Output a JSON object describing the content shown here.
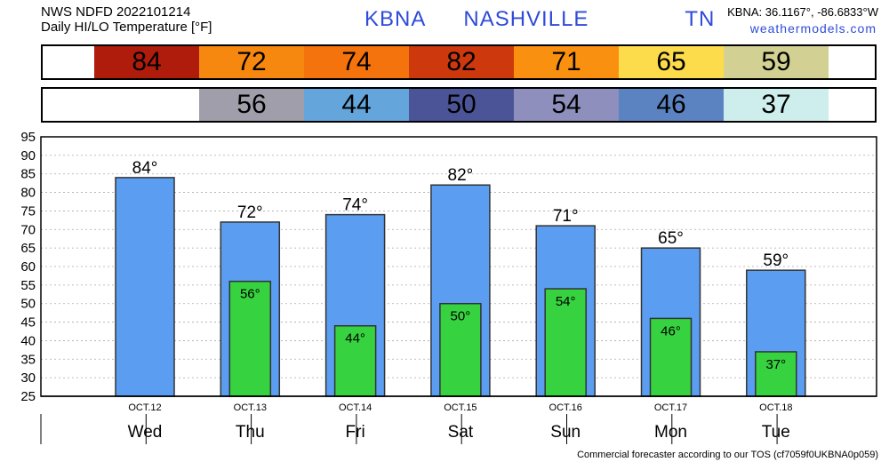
{
  "header": {
    "line1": "NWS NDFD 2022101214",
    "line2": "Daily HI/LO Temperature [°F]",
    "station": "KBNA  NASHVILLE     TN",
    "coords": "KBNA: 36.1167°, -86.6833°W",
    "site": "weathermodels.com"
  },
  "hi_strip": [
    {
      "value": "84",
      "color": "#b01c0c"
    },
    {
      "value": "72",
      "color": "#f7880f"
    },
    {
      "value": "74",
      "color": "#f4730d"
    },
    {
      "value": "82",
      "color": "#cd380d"
    },
    {
      "value": "71",
      "color": "#fa900f"
    },
    {
      "value": "65",
      "color": "#fddc4c"
    },
    {
      "value": "59",
      "color": "#d2d093"
    }
  ],
  "lo_strip": [
    {
      "value": "",
      "color": "#ffffff"
    },
    {
      "value": "56",
      "color": "#9f9eaa"
    },
    {
      "value": "44",
      "color": "#64a6dc"
    },
    {
      "value": "50",
      "color": "#4b5497"
    },
    {
      "value": "54",
      "color": "#8e8fbd"
    },
    {
      "value": "46",
      "color": "#5c83c1"
    },
    {
      "value": "37",
      "color": "#cdeeed"
    }
  ],
  "chart_data": {
    "type": "bar",
    "categories": [
      "Wed",
      "Thu",
      "Fri",
      "Sat",
      "Sun",
      "Mon",
      "Tue"
    ],
    "dates": [
      "OCT.12",
      "OCT.13",
      "OCT.14",
      "OCT.15",
      "OCT.16",
      "OCT.17",
      "OCT.18"
    ],
    "series": [
      {
        "values": [
          84,
          72,
          74,
          82,
          71,
          65,
          59
        ],
        "color": "#5b9ef1"
      },
      {
        "values": [
          null,
          56,
          44,
          50,
          54,
          46,
          37
        ],
        "color": "#36d23f"
      }
    ],
    "hi_labels": [
      "84°",
      "72°",
      "74°",
      "82°",
      "71°",
      "65°",
      "59°"
    ],
    "lo_labels": [
      "",
      "56°",
      "44°",
      "50°",
      "54°",
      "46°",
      "37°"
    ],
    "yticks": [
      25,
      30,
      35,
      40,
      45,
      50,
      55,
      60,
      65,
      70,
      75,
      80,
      85,
      90,
      95
    ],
    "ylim": [
      25,
      95
    ],
    "grid": true
  },
  "footer": "Commercial forecaster according to our TOS (cf7059f0UKBNA0p059)"
}
